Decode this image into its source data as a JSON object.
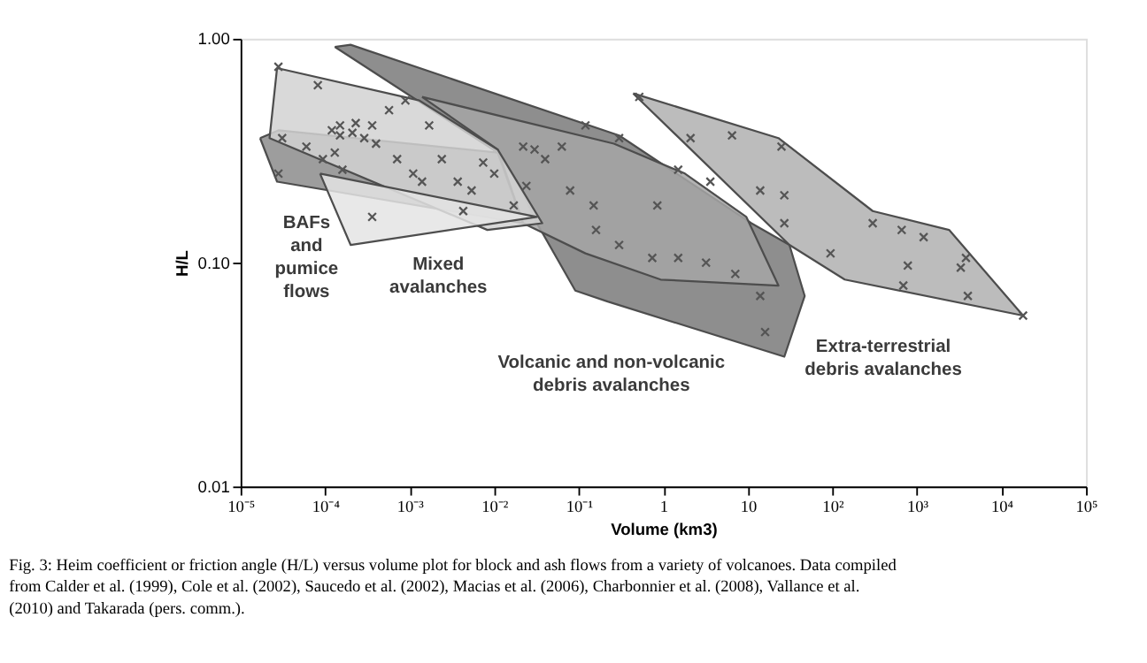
{
  "chart_data": {
    "type": "scatter",
    "xlabel": "Volume (km3)",
    "ylabel": "H/L",
    "log": "xy",
    "grid": false,
    "xlim": [
      1e-05,
      100000
    ],
    "ylim": [
      0.01,
      1
    ],
    "xticks": [
      {
        "value": 1e-05,
        "label": "10⁻⁵"
      },
      {
        "value": 0.0001,
        "label": "10⁻⁴"
      },
      {
        "value": 0.001,
        "label": "10⁻³"
      },
      {
        "value": 0.01,
        "label": "10⁻²"
      },
      {
        "value": 0.1,
        "label": "10⁻¹"
      },
      1,
      10,
      {
        "value": 100,
        "label": "10²"
      },
      {
        "value": 1000,
        "label": "10³"
      },
      {
        "value": 10000,
        "label": "10⁴"
      },
      {
        "value": 100000,
        "label": "10⁵"
      }
    ],
    "yticks": [
      0.01,
      {
        "value": 0.1,
        "label": "0.10"
      },
      {
        "value": 1,
        "label": "1.00"
      }
    ],
    "series": [
      {
        "type": "area",
        "color": "#8c8c8c",
        "x": [
          1.7e-05,
          2.8e-05,
          0.011,
          0.022,
          2.7e-05
        ],
        "values": [
          0.36,
          0.39,
          0.31,
          0.15,
          0.23
        ]
      },
      {
        "type": "area",
        "color": "#7a7a7a",
        "x": [
          0.00013,
          0.0002,
          0.3,
          11,
          31,
          47,
          27,
          0.22,
          0.091,
          0.032,
          0.02,
          0.011
        ],
        "values": [
          0.92,
          0.94,
          0.37,
          0.15,
          0.12,
          0.071,
          0.038,
          0.067,
          0.075,
          0.15,
          0.22,
          0.31
        ]
      },
      {
        "type": "area",
        "color": "#a6a6a6",
        "x": [
          0.0014,
          0.02,
          0.26,
          1.8,
          9.6,
          23,
          0.93,
          0.12,
          0.022,
          0.011
        ],
        "values": [
          0.55,
          0.43,
          0.34,
          0.25,
          0.16,
          0.079,
          0.084,
          0.11,
          0.15,
          0.32
        ]
      },
      {
        "type": "area",
        "color": "#b0b0b0",
        "x": [
          0.44,
          23,
          300,
          2400,
          18000,
          140,
          31
        ],
        "values": [
          0.57,
          0.36,
          0.17,
          0.14,
          0.058,
          0.084,
          0.12
        ]
      },
      {
        "type": "area",
        "color": "#d2d2d2",
        "x": [
          2.7e-05,
          0.0013,
          0.011,
          0.037,
          0.0083,
          2.2e-05
        ],
        "values": [
          0.74,
          0.53,
          0.32,
          0.15,
          0.14,
          0.36
        ]
      },
      {
        "type": "area",
        "color": "#e4e4e4",
        "x": [
          8.7e-05,
          0.032,
          0.0002
        ],
        "values": [
          0.25,
          0.16,
          0.12
        ]
      },
      {
        "marker": "cross",
        "color": "#555555",
        "x": [
          2.8e-05,
          8.2e-05,
          3.1e-05,
          2.8e-05,
          6e-05,
          9.4e-05,
          0.00013,
          0.00016,
          0.00015,
          0.00023,
          0.00036,
          0.00057,
          0.00089,
          0.0017,
          0.0004,
          0.00071,
          0.0011,
          0.0014,
          0.0024,
          0.0037,
          0.0054,
          0.0074,
          0.01,
          0.017,
          0.024,
          0.0043,
          0.00036,
          0.00012,
          0.00015,
          0.00021,
          0.00029,
          0.03,
          0.079,
          0.15,
          0.3,
          0.74,
          1.5,
          3.2,
          7.1,
          14,
          27,
          14,
          3.6,
          1.5,
          0.3,
          0.12,
          0.063,
          0.16,
          0.85,
          16,
          2.1,
          6.5,
          25,
          27,
          95,
          300,
          660,
          1200,
          780,
          3800,
          3300,
          690,
          4000,
          18000,
          0.52,
          0.04,
          0.022
        ],
        "values": [
          0.75,
          0.62,
          0.36,
          0.25,
          0.33,
          0.29,
          0.31,
          0.26,
          0.41,
          0.42,
          0.41,
          0.48,
          0.53,
          0.41,
          0.34,
          0.29,
          0.25,
          0.23,
          0.29,
          0.23,
          0.21,
          0.28,
          0.25,
          0.18,
          0.22,
          0.17,
          0.16,
          0.39,
          0.37,
          0.38,
          0.36,
          0.32,
          0.21,
          0.18,
          0.12,
          0.105,
          0.105,
          0.1,
          0.089,
          0.071,
          0.15,
          0.21,
          0.23,
          0.26,
          0.36,
          0.41,
          0.33,
          0.14,
          0.18,
          0.049,
          0.36,
          0.37,
          0.33,
          0.2,
          0.11,
          0.15,
          0.14,
          0.13,
          0.097,
          0.105,
          0.095,
          0.079,
          0.071,
          0.058,
          0.55,
          0.29,
          0.33
        ]
      }
    ],
    "annotations": [
      "BAFs\nand\npumice\nflows",
      "Mixed\navalanches",
      "Volcanic and non-volcanic\ndebris avalanches",
      "Extra-terrestrial\ndebris avalanches",
      "Fig. 3: Heim coefficient or friction angle (H/L) versus volume plot for block and ash flows from a variety of volcanoes. Data compiled from Calder et al. (1999), Cole et al. (2002), Saucedo et al. (2002), Macias et al. (2006), Charbonnier et al. (2008), Vallance et al. (2010) and Takarada (pers. comm.)."
    ]
  }
}
